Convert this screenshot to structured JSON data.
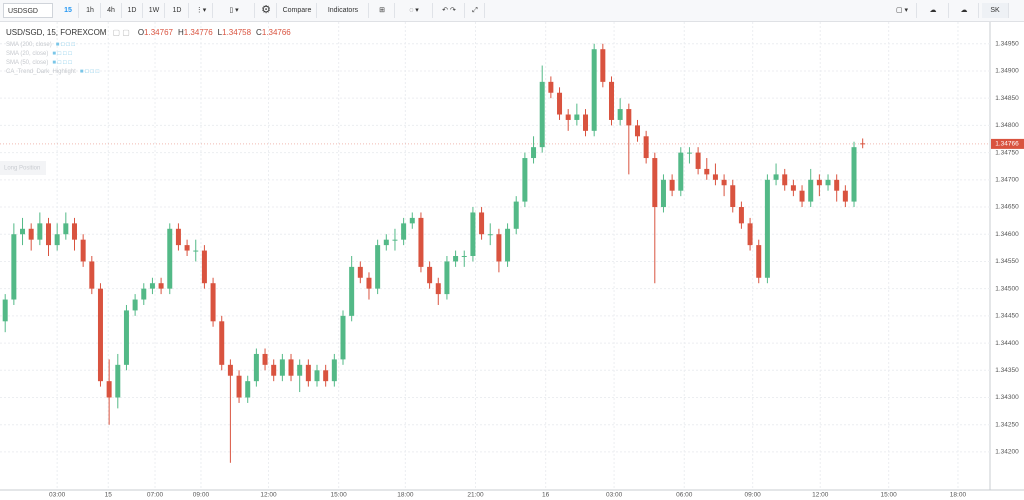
{
  "toolbar": {
    "symbol": "USDSGD",
    "intervals": [
      "15",
      "1h",
      "4h",
      "1D",
      "1W",
      "1D"
    ],
    "compare": "Compare",
    "indicators": "Indicators",
    "user": "SK"
  },
  "chart_data": {
    "type": "candlestick",
    "title": "USD/SGD, 15, FOREXCOM",
    "ohlc_labels": [
      "O",
      "H",
      "L",
      "C"
    ],
    "indicators": [
      "SMA (200, close)",
      "SMA (20, close)",
      "SMA (50, close)",
      "CA_Trend_Dark_Highlight"
    ],
    "annotation": "Long Position",
    "up_color": "#53b987",
    "down_color": "#d9533f",
    "grid": true,
    "xlim": [
      -0.6,
      113.7
    ],
    "xticks": [
      {
        "value": 6,
        "label": "03:00"
      },
      {
        "value": 11.9,
        "label": "15"
      },
      {
        "value": 17.3,
        "label": "07:00"
      },
      {
        "value": 22.6,
        "label": "09:00"
      },
      {
        "value": 30.4,
        "label": "12:00"
      },
      {
        "value": 38.5,
        "label": "15:00"
      },
      {
        "value": 46.2,
        "label": "18:00"
      },
      {
        "value": 54.3,
        "label": "21:00"
      },
      {
        "value": 62.4,
        "label": "16"
      },
      {
        "value": 70.3,
        "label": "03:00"
      },
      {
        "value": 78.4,
        "label": "06:00"
      },
      {
        "value": 86.3,
        "label": "09:00"
      },
      {
        "value": 94.1,
        "label": "12:00"
      },
      {
        "value": 102,
        "label": "15:00"
      },
      {
        "value": 110,
        "label": "18:00"
      }
    ],
    "ylim": [
      1.3413,
      1.3499
    ],
    "yticks": [
      {
        "value": 1.342,
        "label": "1.34200"
      },
      {
        "value": 1.3425,
        "label": "1.34250"
      },
      {
        "value": 1.343,
        "label": "1.34300"
      },
      {
        "value": 1.3435,
        "label": "1.34350"
      },
      {
        "value": 1.344,
        "label": "1.34400"
      },
      {
        "value": 1.3445,
        "label": "1.34450"
      },
      {
        "value": 1.345,
        "label": "1.34500"
      },
      {
        "value": 1.3455,
        "label": "1.34550"
      },
      {
        "value": 1.346,
        "label": "1.34600"
      },
      {
        "value": 1.3465,
        "label": "1.34650"
      },
      {
        "value": 1.347,
        "label": "1.34700"
      },
      {
        "value": 1.3475,
        "label": "1.34750"
      },
      {
        "value": 1.348,
        "label": "1.34800"
      },
      {
        "value": 1.3485,
        "label": "1.34850"
      },
      {
        "value": 1.349,
        "label": "1.34900"
      },
      {
        "value": 1.3495,
        "label": "1.34950"
      }
    ],
    "ohlc": [
      [
        1.3444,
        1.3449,
        1.3442,
        1.3448
      ],
      [
        1.3448,
        1.3462,
        1.3447,
        1.346
      ],
      [
        1.346,
        1.3463,
        1.3458,
        1.3461
      ],
      [
        1.3461,
        1.3462,
        1.3457,
        1.3459
      ],
      [
        1.3459,
        1.3464,
        1.3458,
        1.3462
      ],
      [
        1.3462,
        1.3463,
        1.3456,
        1.3458
      ],
      [
        1.3458,
        1.3462,
        1.3457,
        1.346
      ],
      [
        1.346,
        1.3464,
        1.3459,
        1.3462
      ],
      [
        1.3462,
        1.3463,
        1.3457,
        1.3459
      ],
      [
        1.3459,
        1.346,
        1.3454,
        1.3455
      ],
      [
        1.3455,
        1.3456,
        1.3449,
        1.345
      ],
      [
        1.345,
        1.3451,
        1.3432,
        1.3433
      ],
      [
        1.3433,
        1.3437,
        1.3425,
        1.343
      ],
      [
        1.343,
        1.3438,
        1.3428,
        1.3436
      ],
      [
        1.3436,
        1.3447,
        1.3435,
        1.3446
      ],
      [
        1.3446,
        1.3449,
        1.3445,
        1.3448
      ],
      [
        1.3448,
        1.3451,
        1.3447,
        1.345
      ],
      [
        1.345,
        1.3452,
        1.3449,
        1.3451
      ],
      [
        1.3451,
        1.3452,
        1.3449,
        1.345
      ],
      [
        1.345,
        1.3462,
        1.3449,
        1.3461
      ],
      [
        1.3461,
        1.3462,
        1.3457,
        1.3458
      ],
      [
        1.3458,
        1.3459,
        1.3456,
        1.3457
      ],
      [
        1.3457,
        1.3459,
        1.3455,
        1.3457
      ],
      [
        1.3457,
        1.3458,
        1.345,
        1.3451
      ],
      [
        1.3451,
        1.3452,
        1.3443,
        1.3444
      ],
      [
        1.3444,
        1.3445,
        1.3435,
        1.3436
      ],
      [
        1.3436,
        1.3437,
        1.3418,
        1.3434
      ],
      [
        1.3434,
        1.3435,
        1.3429,
        1.343
      ],
      [
        1.343,
        1.3434,
        1.3429,
        1.3433
      ],
      [
        1.3433,
        1.3439,
        1.3432,
        1.3438
      ],
      [
        1.3438,
        1.3439,
        1.3435,
        1.3436
      ],
      [
        1.3436,
        1.3437,
        1.3433,
        1.3434
      ],
      [
        1.3434,
        1.3438,
        1.3433,
        1.3437
      ],
      [
        1.3437,
        1.3438,
        1.3433,
        1.3434
      ],
      [
        1.3434,
        1.3437,
        1.3431,
        1.3436
      ],
      [
        1.3436,
        1.3437,
        1.3432,
        1.3433
      ],
      [
        1.3433,
        1.3436,
        1.3432,
        1.3435
      ],
      [
        1.3435,
        1.3436,
        1.3432,
        1.3433
      ],
      [
        1.3433,
        1.3438,
        1.3432,
        1.3437
      ],
      [
        1.3437,
        1.3446,
        1.3436,
        1.3445
      ],
      [
        1.3445,
        1.3456,
        1.3444,
        1.3454
      ],
      [
        1.3454,
        1.3455,
        1.3451,
        1.3452
      ],
      [
        1.3452,
        1.3453,
        1.3448,
        1.345
      ],
      [
        1.345,
        1.3459,
        1.3449,
        1.3458
      ],
      [
        1.3458,
        1.346,
        1.3457,
        1.3459
      ],
      [
        1.3459,
        1.3461,
        1.3457,
        1.3459
      ],
      [
        1.3459,
        1.3463,
        1.3458,
        1.3462
      ],
      [
        1.3462,
        1.3464,
        1.3461,
        1.3463
      ],
      [
        1.3463,
        1.3464,
        1.3453,
        1.3454
      ],
      [
        1.3454,
        1.3455,
        1.345,
        1.3451
      ],
      [
        1.3451,
        1.3452,
        1.3447,
        1.3449
      ],
      [
        1.3449,
        1.3456,
        1.3448,
        1.3455
      ],
      [
        1.3455,
        1.3457,
        1.3454,
        1.3456
      ],
      [
        1.3456,
        1.3457,
        1.3454,
        1.3456
      ],
      [
        1.3456,
        1.3465,
        1.3455,
        1.3464
      ],
      [
        1.3464,
        1.3465,
        1.3459,
        1.346
      ],
      [
        1.346,
        1.3462,
        1.3458,
        1.346
      ],
      [
        1.346,
        1.3461,
        1.3453,
        1.3455
      ],
      [
        1.3455,
        1.3462,
        1.3454,
        1.3461
      ],
      [
        1.3461,
        1.3467,
        1.346,
        1.3466
      ],
      [
        1.3466,
        1.3475,
        1.3465,
        1.3474
      ],
      [
        1.3474,
        1.3478,
        1.3473,
        1.3476
      ],
      [
        1.3476,
        1.3491,
        1.3475,
        1.3488
      ],
      [
        1.3488,
        1.3489,
        1.3485,
        1.3486
      ],
      [
        1.3486,
        1.3487,
        1.3481,
        1.3482
      ],
      [
        1.3482,
        1.3483,
        1.3479,
        1.3481
      ],
      [
        1.3481,
        1.3484,
        1.348,
        1.3482
      ],
      [
        1.3482,
        1.3483,
        1.3478,
        1.3479
      ],
      [
        1.3479,
        1.3495,
        1.3478,
        1.3494
      ],
      [
        1.3494,
        1.3495,
        1.3487,
        1.3488
      ],
      [
        1.3488,
        1.3489,
        1.348,
        1.3481
      ],
      [
        1.3481,
        1.3485,
        1.348,
        1.3483
      ],
      [
        1.3483,
        1.3484,
        1.3471,
        1.348
      ],
      [
        1.348,
        1.3481,
        1.3477,
        1.3478
      ],
      [
        1.3478,
        1.3479,
        1.3473,
        1.3474
      ],
      [
        1.3474,
        1.3475,
        1.3451,
        1.3465
      ],
      [
        1.3465,
        1.3471,
        1.3464,
        1.347
      ],
      [
        1.347,
        1.3471,
        1.3467,
        1.3468
      ],
      [
        1.3468,
        1.3476,
        1.3467,
        1.3475
      ],
      [
        1.3475,
        1.3476,
        1.3473,
        1.3475
      ],
      [
        1.3475,
        1.3476,
        1.3471,
        1.3472
      ],
      [
        1.3472,
        1.3474,
        1.347,
        1.3471
      ],
      [
        1.3471,
        1.3473,
        1.3469,
        1.347
      ],
      [
        1.347,
        1.3471,
        1.3467,
        1.3469
      ],
      [
        1.3469,
        1.347,
        1.3464,
        1.3465
      ],
      [
        1.3465,
        1.3466,
        1.3461,
        1.3462
      ],
      [
        1.3462,
        1.3463,
        1.3457,
        1.3458
      ],
      [
        1.3458,
        1.3459,
        1.3451,
        1.3452
      ],
      [
        1.3452,
        1.3471,
        1.3451,
        1.347
      ],
      [
        1.347,
        1.3473,
        1.3469,
        1.3471
      ],
      [
        1.3471,
        1.3472,
        1.3468,
        1.3469
      ],
      [
        1.3469,
        1.347,
        1.3467,
        1.3468
      ],
      [
        1.3468,
        1.3469,
        1.3465,
        1.3466
      ],
      [
        1.3466,
        1.3472,
        1.3465,
        1.347
      ],
      [
        1.347,
        1.3471,
        1.3467,
        1.3469
      ],
      [
        1.3469,
        1.3471,
        1.3468,
        1.347
      ],
      [
        1.347,
        1.3471,
        1.3466,
        1.3468
      ],
      [
        1.3468,
        1.3469,
        1.3465,
        1.3466
      ],
      [
        1.3466,
        1.3477,
        1.3465,
        1.3476
      ],
      [
        1.34767,
        1.34776,
        1.34758,
        1.34766
      ]
    ]
  }
}
